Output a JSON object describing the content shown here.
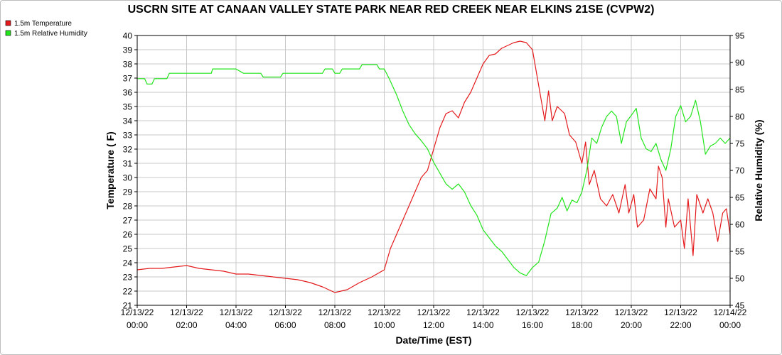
{
  "chart_data": {
    "type": "line",
    "title": "USCRN SITE AT CANAAN VALLEY STATE PARK NEAR RED CREEK NEAR ELKINS 21SE (CVPW2)",
    "xlabel": "Date/Time (EST)",
    "ylabel_left": "Temperature ( F)",
    "ylabel_right": "Relative Humidity (%)",
    "x_ticks": [
      {
        "date": "12/13/22",
        "time": "00:00"
      },
      {
        "date": "12/13/22",
        "time": "02:00"
      },
      {
        "date": "12/13/22",
        "time": "04:00"
      },
      {
        "date": "12/13/22",
        "time": "06:00"
      },
      {
        "date": "12/13/22",
        "time": "08:00"
      },
      {
        "date": "12/13/22",
        "time": "10:00"
      },
      {
        "date": "12/13/22",
        "time": "12:00"
      },
      {
        "date": "12/13/22",
        "time": "14:00"
      },
      {
        "date": "12/13/22",
        "time": "16:00"
      },
      {
        "date": "12/13/22",
        "time": "18:00"
      },
      {
        "date": "12/13/22",
        "time": "20:00"
      },
      {
        "date": "12/13/22",
        "time": "22:00"
      },
      {
        "date": "12/14/22",
        "time": "00:00"
      }
    ],
    "xlim_hours": [
      0,
      24
    ],
    "ylim_left": [
      21,
      40
    ],
    "ylim_right": [
      45,
      95
    ],
    "grid": true,
    "legend_position": "top-left",
    "series": [
      {
        "name": "1.5m Temperature",
        "axis": "left",
        "color": "#e41a1c",
        "points": [
          [
            0,
            23.5
          ],
          [
            0.5,
            23.6
          ],
          [
            1,
            23.6
          ],
          [
            1.5,
            23.7
          ],
          [
            2,
            23.8
          ],
          [
            2.5,
            23.6
          ],
          [
            3,
            23.5
          ],
          [
            3.5,
            23.4
          ],
          [
            4,
            23.2
          ],
          [
            4.5,
            23.2
          ],
          [
            5,
            23.1
          ],
          [
            5.5,
            23.0
          ],
          [
            6,
            22.9
          ],
          [
            6.5,
            22.8
          ],
          [
            7,
            22.6
          ],
          [
            7.5,
            22.3
          ],
          [
            8,
            21.9
          ],
          [
            8.5,
            22.1
          ],
          [
            9,
            22.6
          ],
          [
            9.5,
            23.0
          ],
          [
            10,
            23.5
          ],
          [
            10.25,
            25.0
          ],
          [
            10.5,
            26.0
          ],
          [
            10.75,
            27.0
          ],
          [
            11,
            28.0
          ],
          [
            11.25,
            29.0
          ],
          [
            11.5,
            30.0
          ],
          [
            11.75,
            30.5
          ],
          [
            12,
            32.0
          ],
          [
            12.25,
            33.5
          ],
          [
            12.5,
            34.5
          ],
          [
            12.75,
            34.7
          ],
          [
            13,
            34.2
          ],
          [
            13.25,
            35.3
          ],
          [
            13.5,
            36.0
          ],
          [
            13.75,
            37.0
          ],
          [
            14,
            38.0
          ],
          [
            14.25,
            38.6
          ],
          [
            14.5,
            38.7
          ],
          [
            14.75,
            39.1
          ],
          [
            15,
            39.3
          ],
          [
            15.25,
            39.5
          ],
          [
            15.5,
            39.6
          ],
          [
            15.75,
            39.5
          ],
          [
            16,
            39.0
          ],
          [
            16.15,
            37.5
          ],
          [
            16.3,
            36.0
          ],
          [
            16.5,
            34.0
          ],
          [
            16.65,
            36.1
          ],
          [
            16.8,
            34.0
          ],
          [
            17.0,
            35.0
          ],
          [
            17.3,
            34.5
          ],
          [
            17.5,
            33.0
          ],
          [
            17.75,
            32.5
          ],
          [
            18,
            31.0
          ],
          [
            18.15,
            32.5
          ],
          [
            18.3,
            29.5
          ],
          [
            18.5,
            30.5
          ],
          [
            18.75,
            28.5
          ],
          [
            19,
            28.0
          ],
          [
            19.25,
            28.8
          ],
          [
            19.5,
            27.5
          ],
          [
            19.75,
            29.5
          ],
          [
            19.9,
            27.5
          ],
          [
            20.1,
            28.8
          ],
          [
            20.25,
            26.5
          ],
          [
            20.5,
            27.0
          ],
          [
            20.75,
            29.2
          ],
          [
            21,
            28.5
          ],
          [
            21.1,
            30.8
          ],
          [
            21.25,
            30.0
          ],
          [
            21.4,
            26.5
          ],
          [
            21.5,
            28.5
          ],
          [
            21.75,
            26.5
          ],
          [
            22,
            27.0
          ],
          [
            22.15,
            25.0
          ],
          [
            22.3,
            28.5
          ],
          [
            22.5,
            24.5
          ],
          [
            22.65,
            28.8
          ],
          [
            22.9,
            27.5
          ],
          [
            23.1,
            28.5
          ],
          [
            23.3,
            27.5
          ],
          [
            23.5,
            25.5
          ],
          [
            23.7,
            27.5
          ],
          [
            23.85,
            27.8
          ],
          [
            24,
            26.0
          ]
        ]
      },
      {
        "name": "1.5m Relative Humidity",
        "axis": "right",
        "color": "#22e51b",
        "points": [
          [
            0,
            87
          ],
          [
            0.3,
            87
          ],
          [
            0.4,
            86
          ],
          [
            0.6,
            86
          ],
          [
            0.7,
            87
          ],
          [
            1.2,
            87
          ],
          [
            1.3,
            88
          ],
          [
            1.8,
            88
          ],
          [
            2.5,
            88
          ],
          [
            3,
            88
          ],
          [
            3.05,
            88.8
          ],
          [
            4,
            88.8
          ],
          [
            4.3,
            88
          ],
          [
            5,
            88
          ],
          [
            5.1,
            87.3
          ],
          [
            5.8,
            87.3
          ],
          [
            5.9,
            88
          ],
          [
            7.5,
            88
          ],
          [
            7.6,
            88.8
          ],
          [
            7.9,
            88.8
          ],
          [
            8,
            88
          ],
          [
            8.2,
            88
          ],
          [
            8.3,
            88.8
          ],
          [
            9,
            88.8
          ],
          [
            9.1,
            89.6
          ],
          [
            9.7,
            89.6
          ],
          [
            9.8,
            88.8
          ],
          [
            10,
            88.8
          ],
          [
            10.2,
            87
          ],
          [
            10.5,
            84
          ],
          [
            10.75,
            81
          ],
          [
            11,
            78.5
          ],
          [
            11.25,
            76.8
          ],
          [
            11.5,
            75.5
          ],
          [
            11.75,
            74
          ],
          [
            12,
            71.5
          ],
          [
            12.25,
            69.5
          ],
          [
            12.5,
            67.5
          ],
          [
            12.75,
            66.5
          ],
          [
            13,
            67.5
          ],
          [
            13.25,
            66
          ],
          [
            13.5,
            63.5
          ],
          [
            13.75,
            61.7
          ],
          [
            14,
            59
          ],
          [
            14.25,
            57.5
          ],
          [
            14.5,
            56
          ],
          [
            14.75,
            55
          ],
          [
            15,
            53.5
          ],
          [
            15.25,
            52
          ],
          [
            15.5,
            51
          ],
          [
            15.75,
            50.5
          ],
          [
            16,
            52
          ],
          [
            16.25,
            53
          ],
          [
            16.5,
            57
          ],
          [
            16.75,
            62
          ],
          [
            17,
            63
          ],
          [
            17.2,
            65
          ],
          [
            17.4,
            62.5
          ],
          [
            17.6,
            64.5
          ],
          [
            17.8,
            64
          ],
          [
            18,
            66
          ],
          [
            18.2,
            70
          ],
          [
            18.4,
            76
          ],
          [
            18.6,
            75
          ],
          [
            18.8,
            78
          ],
          [
            19,
            80
          ],
          [
            19.2,
            81
          ],
          [
            19.4,
            80
          ],
          [
            19.6,
            75
          ],
          [
            19.8,
            79
          ],
          [
            20,
            80.2
          ],
          [
            20.2,
            81.5
          ],
          [
            20.4,
            76
          ],
          [
            20.6,
            74
          ],
          [
            20.8,
            73.5
          ],
          [
            21,
            75
          ],
          [
            21.2,
            72
          ],
          [
            21.4,
            70
          ],
          [
            21.6,
            74
          ],
          [
            21.8,
            80
          ],
          [
            22,
            82
          ],
          [
            22.2,
            79
          ],
          [
            22.4,
            80
          ],
          [
            22.6,
            83
          ],
          [
            22.8,
            79
          ],
          [
            23,
            73
          ],
          [
            23.2,
            74.5
          ],
          [
            23.4,
            75
          ],
          [
            23.6,
            76
          ],
          [
            23.8,
            75
          ],
          [
            24,
            76
          ]
        ]
      }
    ]
  }
}
